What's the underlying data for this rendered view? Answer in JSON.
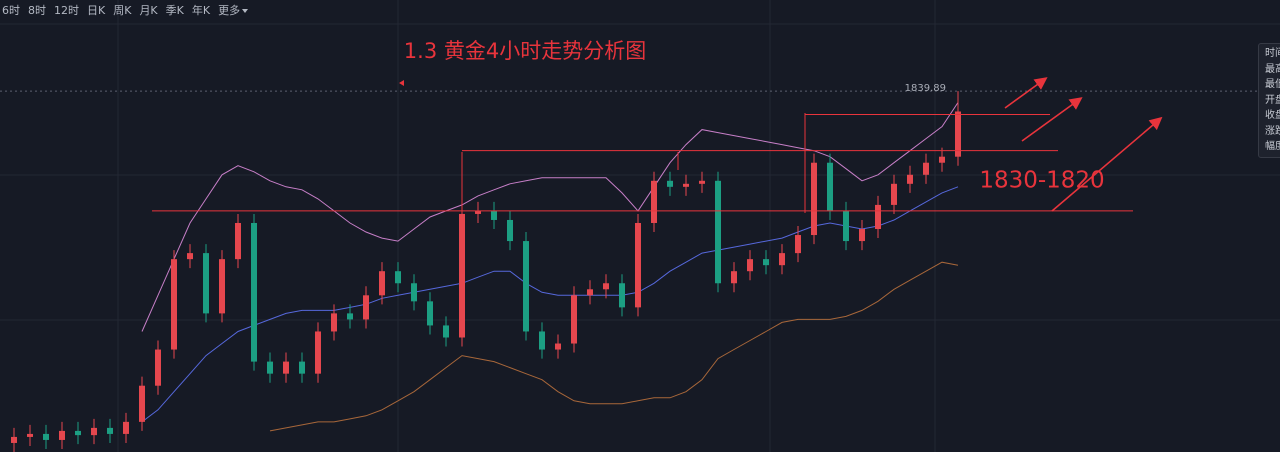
{
  "toolbar": {
    "intervals": [
      "6时",
      "8时",
      "12时",
      "日K",
      "周K",
      "月K",
      "季K",
      "年K"
    ],
    "more": "更多"
  },
  "side_panel": {
    "labels": [
      "时间",
      "最高",
      "最低",
      "开盘",
      "收盘",
      "涨跌",
      "幅度"
    ]
  },
  "chart_data": {
    "type": "candlestick",
    "title": "1.3 黄金4小时走势分析图",
    "annotation": "1830-1820",
    "ylim": [
      1780,
      1855
    ],
    "up_color": "#e5474e",
    "down_color": "#1c9f83",
    "open": [
      1781.5,
      1782.5,
      1783,
      1782,
      1783.5,
      1782.8,
      1784,
      1783,
      1785,
      1791,
      1797,
      1812,
      1813,
      1803,
      1812,
      1818,
      1795,
      1793,
      1795,
      1793,
      1800,
      1803,
      1802,
      1806,
      1810,
      1808,
      1805,
      1801,
      1799,
      1819.5,
      1820,
      1818.5,
      1815,
      1800,
      1797,
      1798,
      1806,
      1807,
      1808,
      1804,
      1818,
      1825,
      1824,
      1824.5,
      1825,
      1808,
      1810,
      1812,
      1811,
      1813,
      1816,
      1828,
      1820,
      1815,
      1817,
      1821,
      1824.5,
      1826,
      1828,
      1829
    ],
    "high": [
      1784,
      1784.5,
      1784.5,
      1785,
      1785,
      1785.5,
      1785.5,
      1786.5,
      1792.5,
      1798.5,
      1813.5,
      1814.5,
      1814.5,
      1813.5,
      1819.5,
      1819.5,
      1796.5,
      1796.5,
      1796.5,
      1801.5,
      1804.5,
      1804.5,
      1807.5,
      1811.5,
      1811.5,
      1809.5,
      1806.5,
      1802.5,
      1821,
      1821.5,
      1821.5,
      1820,
      1816.5,
      1801.5,
      1799.5,
      1807.5,
      1808.5,
      1809.5,
      1809.5,
      1819.5,
      1826.5,
      1826.5,
      1826,
      1826.5,
      1826.5,
      1811.5,
      1813.5,
      1813.5,
      1814.5,
      1817.5,
      1829.5,
      1829.5,
      1821.5,
      1818.5,
      1822.5,
      1826,
      1827.5,
      1829.5,
      1830.5,
      1839.89
    ],
    "low": [
      1780,
      1781,
      1780.5,
      1780.5,
      1781.3,
      1781.3,
      1781.5,
      1781.5,
      1783.5,
      1789.5,
      1795.5,
      1810.5,
      1801.5,
      1801.5,
      1810.5,
      1793.5,
      1791.5,
      1791.5,
      1791.5,
      1791.5,
      1798.5,
      1800.5,
      1800.5,
      1804.5,
      1806.5,
      1803.5,
      1799.5,
      1797.5,
      1797.5,
      1818,
      1817,
      1813.5,
      1798.5,
      1795.5,
      1795.5,
      1796.5,
      1804.5,
      1805.5,
      1802.5,
      1802.5,
      1816.5,
      1822.5,
      1822.5,
      1823,
      1806.5,
      1806.5,
      1808.5,
      1809.5,
      1809.5,
      1811.5,
      1814.5,
      1818.5,
      1813.5,
      1813.5,
      1815.5,
      1819.5,
      1823,
      1824.5,
      1826.5,
      1827.5
    ],
    "close": [
      1782.5,
      1783,
      1782,
      1783.5,
      1782.8,
      1784,
      1783,
      1785,
      1791,
      1797,
      1812,
      1813,
      1803,
      1812,
      1818,
      1795,
      1793,
      1795,
      1793,
      1800,
      1803,
      1802,
      1806,
      1810,
      1808,
      1805,
      1801,
      1799,
      1819.5,
      1820,
      1818.5,
      1815,
      1800,
      1797,
      1798,
      1806,
      1807,
      1808,
      1804,
      1818,
      1825,
      1824,
      1824.5,
      1825,
      1808,
      1810,
      1812,
      1811,
      1813,
      1816,
      1828,
      1820,
      1815,
      1817,
      1821,
      1824.5,
      1826,
      1828,
      1829,
      1836.5
    ],
    "bands": [
      {
        "color": "#c77fc8",
        "values": [
          null,
          null,
          null,
          null,
          null,
          null,
          null,
          null,
          1800,
          1806,
          1812,
          1818,
          1822,
          1826,
          1827.5,
          1826.5,
          1825,
          1824,
          1823.5,
          1822,
          1820,
          1818,
          1816.5,
          1815.5,
          1815,
          1817,
          1819,
          1820,
          1821,
          1822.5,
          1823.5,
          1824.5,
          1825,
          1825.5,
          1825.5,
          1825.5,
          1825.5,
          1825.5,
          1823,
          1820,
          1824,
          1828,
          1831,
          1833.5,
          1833,
          1832.5,
          1832,
          1831.5,
          1831,
          1830.5,
          1830,
          1829,
          1827,
          1825,
          1826,
          1828,
          1830,
          1832,
          1834,
          1838
        ]
      },
      {
        "color": "#5668dc",
        "values": [
          null,
          null,
          null,
          null,
          null,
          null,
          null,
          null,
          1785,
          1787,
          1790,
          1793,
          1796,
          1798,
          1800,
          1801,
          1802,
          1803,
          1803.5,
          1803.5,
          1803.5,
          1804,
          1804.5,
          1805.5,
          1806,
          1806.5,
          1807,
          1807.5,
          1808,
          1809,
          1810,
          1810,
          1808,
          1806.5,
          1806,
          1806,
          1806,
          1806,
          1806,
          1806.5,
          1808,
          1810,
          1811.5,
          1813,
          1813.5,
          1814,
          1814.5,
          1815,
          1815.5,
          1816.5,
          1817.5,
          1818,
          1817.5,
          1817,
          1817.5,
          1818.5,
          1820,
          1821.5,
          1823,
          1824
        ]
      },
      {
        "color": "#a8673a",
        "values": [
          null,
          null,
          null,
          null,
          null,
          null,
          null,
          null,
          null,
          null,
          null,
          null,
          null,
          null,
          null,
          null,
          1783.5,
          1784,
          1784.5,
          1785,
          1785,
          1785.5,
          1786,
          1787,
          1788.5,
          1790,
          1792,
          1794,
          1796,
          1795.5,
          1795,
          1794,
          1793,
          1792,
          1790,
          1788.5,
          1788,
          1788,
          1788,
          1788.5,
          1789,
          1789,
          1790,
          1792,
          1795.5,
          1797,
          1798.5,
          1800,
          1801.5,
          1802,
          1802,
          1802,
          1802.5,
          1803.5,
          1805,
          1807,
          1808.5,
          1810,
          1811.5,
          1811
        ]
      }
    ],
    "levels": [
      1820,
      1830,
      1836
    ],
    "level_color": "#e8343c"
  }
}
